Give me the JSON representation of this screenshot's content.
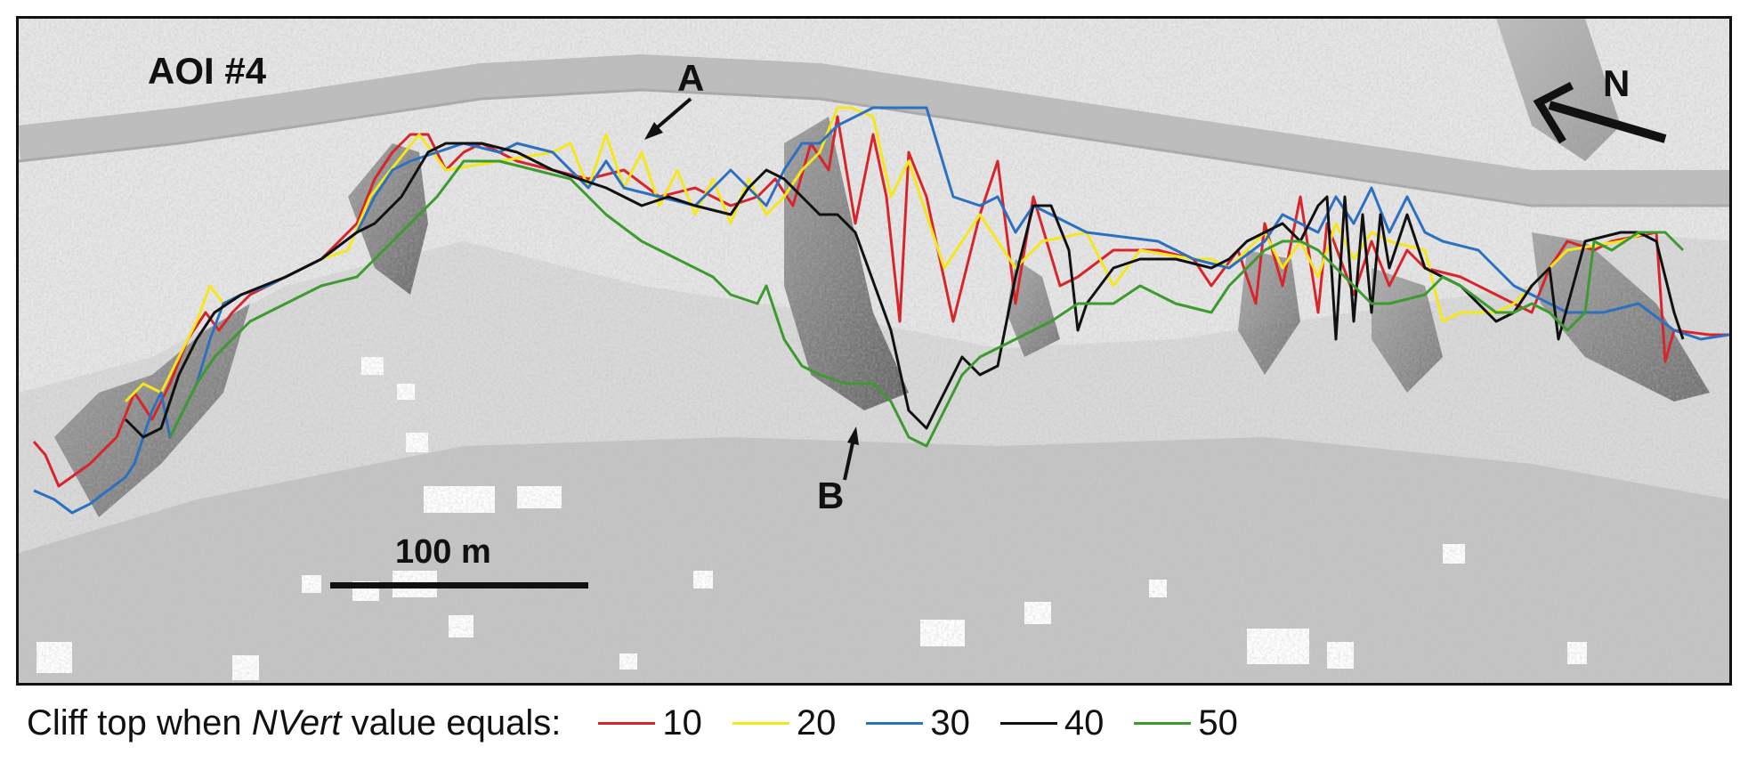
{
  "map": {
    "title": "AOI #4",
    "north_label": "N",
    "scale_label": "100 m",
    "callouts": {
      "a": "A",
      "b": "B"
    }
  },
  "legend": {
    "caption_prefix": "Cliff top when ",
    "caption_italic": "NVert",
    "caption_suffix": " value equals:",
    "items": [
      {
        "label": "10",
        "color": "#d7262b"
      },
      {
        "label": "20",
        "color": "#f5e71c"
      },
      {
        "label": "30",
        "color": "#2e70c0"
      },
      {
        "label": "40",
        "color": "#111111"
      },
      {
        "label": "50",
        "color": "#3c9a2e"
      }
    ]
  },
  "colors": {
    "terrain_light": "#e4e4e4",
    "terrain_shadow": "#7a7a7a",
    "road": "#b9b9b9",
    "frame": "#111111"
  }
}
